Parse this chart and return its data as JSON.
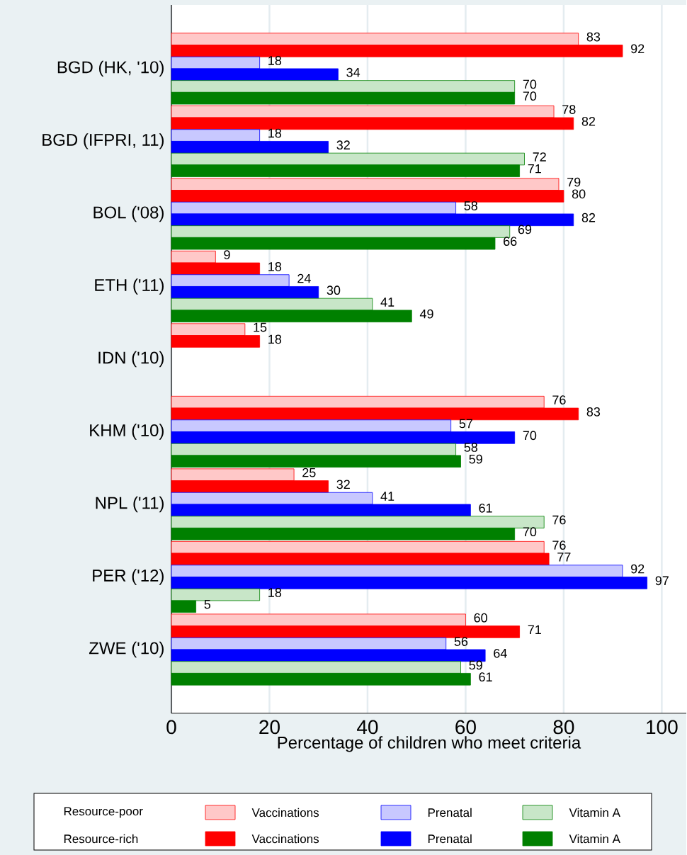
{
  "chart_data": {
    "type": "bar",
    "orientation": "horizontal",
    "categories": [
      "BGD (HK, '10)",
      "BGD (IFPRI, 11)",
      "BOL ('08)",
      "ETH ('11)",
      "IDN ('10)",
      "KHM ('10)",
      "NPL ('11)",
      "PER ('12)",
      "ZWE ('10)"
    ],
    "series": [
      {
        "name": "Vaccinations",
        "color": "#ffc8c8",
        "values": [
          83,
          78,
          79,
          9,
          15,
          76,
          25,
          76,
          60
        ]
      },
      {
        "name": "Vaccinations",
        "color": "#ff0000",
        "values": [
          92,
          82,
          80,
          18,
          18,
          83,
          32,
          77,
          71
        ]
      },
      {
        "name": "Prenatal",
        "color": "#c8c8ff",
        "values": [
          18,
          18,
          58,
          24,
          null,
          57,
          41,
          92,
          56
        ]
      },
      {
        "name": "Prenatal",
        "color": "#0000ff",
        "values": [
          34,
          32,
          82,
          30,
          null,
          70,
          61,
          97,
          64
        ]
      },
      {
        "name": "Vitamin A",
        "color": "#c8e6c8",
        "values": [
          70,
          72,
          69,
          41,
          null,
          58,
          76,
          18,
          59
        ]
      },
      {
        "name": "Vitamin A",
        "color": "#008000",
        "values": [
          70,
          71,
          66,
          49,
          null,
          59,
          70,
          5,
          61
        ]
      }
    ],
    "xlim": [
      0,
      105
    ],
    "xticks": [
      0,
      20,
      40,
      60,
      80,
      100
    ],
    "xlabel": "Percentage of children who meet criteria",
    "grid": "x",
    "legend": "bottom",
    "data_labels": true,
    "annotations": [
      "Resource-poor",
      "Resource-rich"
    ]
  }
}
